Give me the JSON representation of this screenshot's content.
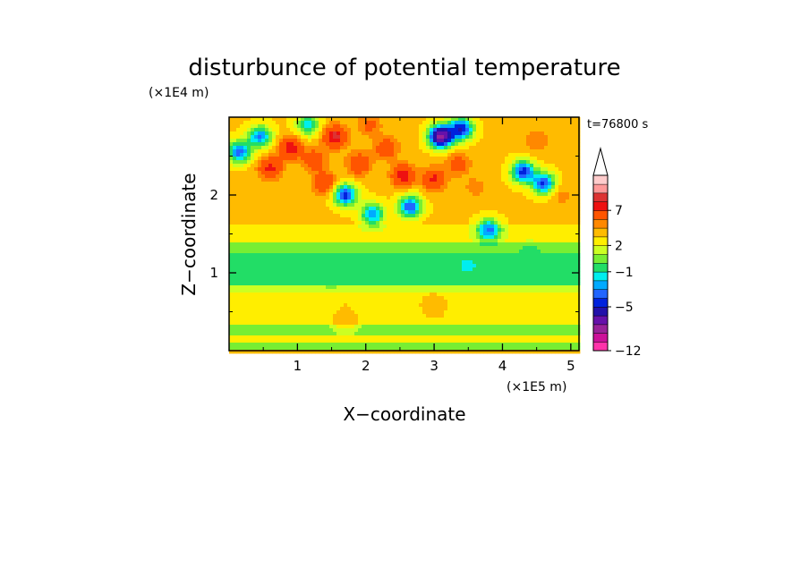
{
  "chart_data": {
    "type": "heatmap",
    "title": "disturbunce of potential temperature",
    "time_label": "t=76800 s",
    "xlabel": "X−coordinate",
    "ylabel": "Z−coordinate",
    "x_unit": "(×1E5 m)",
    "y_unit": "(×1E4 m)",
    "xlim": [
      0,
      5.12
    ],
    "ylim": [
      0,
      3.0
    ],
    "x_ticks": [
      1,
      2,
      3,
      4,
      5
    ],
    "x_tick_labels": [
      "1",
      "2",
      "3",
      "4",
      "5"
    ],
    "y_ticks": [
      1,
      2
    ],
    "y_tick_labels": [
      "1",
      "2"
    ],
    "colorbar": {
      "levels": [
        -12,
        -11,
        -10,
        -9,
        -7,
        -5,
        -4,
        -3,
        -2,
        -1,
        0,
        1,
        2,
        3,
        4,
        5,
        7,
        8,
        9,
        10,
        12
      ],
      "tick_labels": [
        "7",
        "2",
        "−1",
        "−5",
        "−12"
      ],
      "tick_values": [
        7,
        2,
        -1,
        -5,
        -12
      ],
      "colors": [
        "#ff33aa",
        "#cc1199",
        "#992299",
        "#6611aa",
        "#2211aa",
        "#0022dd",
        "#2266ff",
        "#00aaff",
        "#00eeee",
        "#22dd66",
        "#77ee33",
        "#ccff22",
        "#ffee00",
        "#ffbb00",
        "#ff8800",
        "#ff5500",
        "#ee1111",
        "#dd3333",
        "#ff9999",
        "#ffcccc"
      ],
      "extend_top": true
    },
    "bands": [
      {
        "z": [
          0.0,
          0.1
        ],
        "value": 0.5
      },
      {
        "z": [
          0.1,
          0.2
        ],
        "value": 2.2
      },
      {
        "z": [
          0.2,
          0.35
        ],
        "value": 0.6
      },
      {
        "z": [
          0.35,
          0.55
        ],
        "value": 2.6
      },
      {
        "z": [
          0.55,
          0.75
        ],
        "value": 2.8
      },
      {
        "z": [
          0.75,
          0.85
        ],
        "value": 1.3
      },
      {
        "z": [
          0.85,
          1.05
        ],
        "value": -0.6
      },
      {
        "z": [
          1.05,
          1.25
        ],
        "value": -0.5
      },
      {
        "z": [
          1.25,
          1.4
        ],
        "value": 0.4
      },
      {
        "z": [
          1.4,
          1.6
        ],
        "value": 2.3
      },
      {
        "z": [
          1.6,
          3.0
        ],
        "value": 3.2
      }
    ],
    "features": [
      {
        "x": 0.15,
        "z": 2.55,
        "value": -3.5
      },
      {
        "x": 0.45,
        "z": 2.75,
        "value": -3.0
      },
      {
        "x": 0.6,
        "z": 2.35,
        "value": 7.5
      },
      {
        "x": 0.9,
        "z": 2.6,
        "value": 8.0
      },
      {
        "x": 1.15,
        "z": 2.9,
        "value": -1.5
      },
      {
        "x": 1.25,
        "z": 2.45,
        "value": 6.5
      },
      {
        "x": 1.55,
        "z": 2.75,
        "value": 8.5
      },
      {
        "x": 1.4,
        "z": 2.15,
        "value": 7.0
      },
      {
        "x": 1.7,
        "z": 2.0,
        "value": -4.5
      },
      {
        "x": 1.9,
        "z": 2.4,
        "value": 7.0
      },
      {
        "x": 2.05,
        "z": 2.9,
        "value": 5.5
      },
      {
        "x": 2.1,
        "z": 1.75,
        "value": -3.0
      },
      {
        "x": 2.3,
        "z": 2.6,
        "value": 6.5
      },
      {
        "x": 2.55,
        "z": 2.25,
        "value": 8.0
      },
      {
        "x": 2.65,
        "z": 1.85,
        "value": -4.0
      },
      {
        "x": 3.1,
        "z": 2.75,
        "value": -9.5
      },
      {
        "x": 3.4,
        "z": 2.85,
        "value": -5.0
      },
      {
        "x": 3.0,
        "z": 2.2,
        "value": 7.5
      },
      {
        "x": 3.35,
        "z": 2.4,
        "value": 6.0
      },
      {
        "x": 3.6,
        "z": 2.1,
        "value": 4.5
      },
      {
        "x": 3.8,
        "z": 1.55,
        "value": -3.5
      },
      {
        "x": 4.3,
        "z": 2.3,
        "value": -4.5
      },
      {
        "x": 4.6,
        "z": 2.15,
        "value": -4.0
      },
      {
        "x": 4.5,
        "z": 2.7,
        "value": 5.0
      },
      {
        "x": 4.85,
        "z": 2.0,
        "value": 4.5
      },
      {
        "x": 3.5,
        "z": 1.1,
        "value": -1.2
      },
      {
        "x": 4.4,
        "z": 1.2,
        "value": -1.0
      },
      {
        "x": 1.5,
        "z": 1.0,
        "value": -0.8
      },
      {
        "x": 1.7,
        "z": 0.4,
        "value": 4.0
      },
      {
        "x": 3.0,
        "z": 0.55,
        "value": 3.8
      }
    ]
  }
}
